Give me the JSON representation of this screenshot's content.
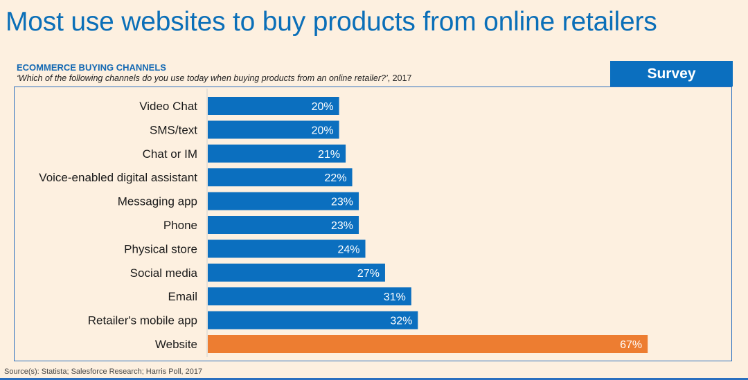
{
  "page_title": "Most use websites to buy products from online retailers",
  "badge_label": "Survey",
  "source": "Source(s): Statista; Salesforce Research; Harris Poll, 2017",
  "colors": {
    "primary_bar": "#0b6fbf",
    "highlight_bar": "#ed7d31",
    "title": "#0b6fb8"
  },
  "chart_data": {
    "type": "bar",
    "orientation": "horizontal",
    "title": "ECOMMERCE BUYING CHANNELS",
    "question": "‘Which of the following channels do you use today when buying products from an online retailer?’",
    "question_year": ", 2017",
    "categories": [
      "Video Chat",
      "SMS/text",
      "Chat or IM",
      "Voice-enabled digital assistant",
      "Messaging app",
      "Phone",
      "Physical store",
      "Social media",
      "Email",
      "Retailer's mobile app",
      "Website"
    ],
    "values": [
      20,
      20,
      21,
      22,
      23,
      23,
      24,
      27,
      31,
      32,
      67
    ],
    "value_labels": [
      "20%",
      "20%",
      "21%",
      "22%",
      "23%",
      "23%",
      "24%",
      "27%",
      "31%",
      "32%",
      "67%"
    ],
    "highlight_category": "Website",
    "unit": "%",
    "xlim": [
      0,
      100
    ],
    "grid": false
  }
}
